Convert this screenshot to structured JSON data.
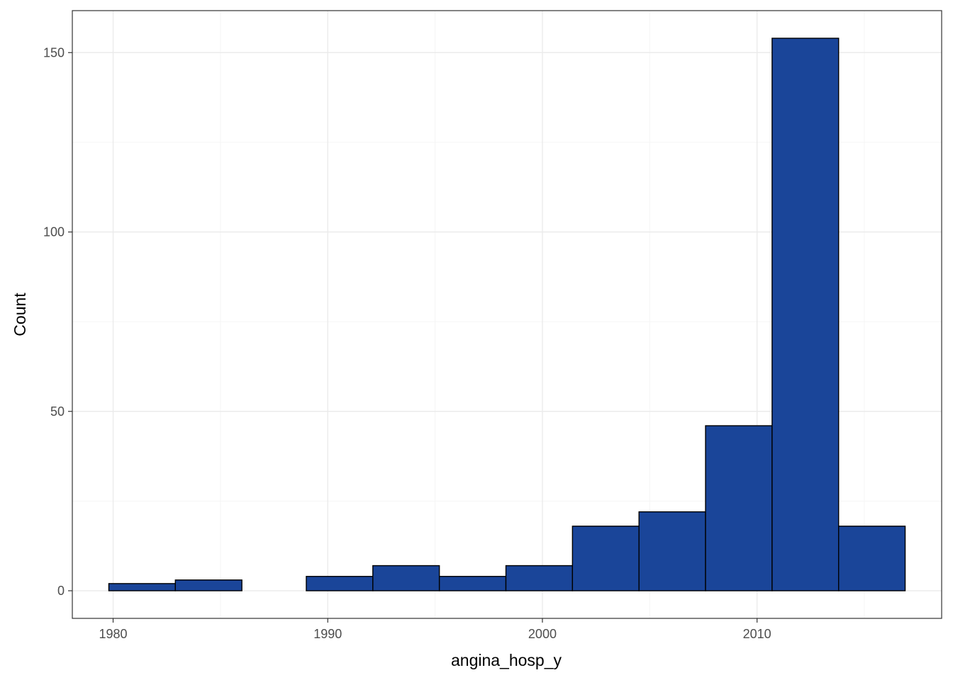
{
  "chart_data": {
    "type": "histogram",
    "title": "",
    "xlabel": "angina_hosp_y",
    "ylabel": "Count",
    "bins": [
      {
        "x0": 1979.8,
        "x1": 1982.9,
        "count": 2
      },
      {
        "x0": 1982.9,
        "x1": 1986.0,
        "count": 3
      },
      {
        "x0": 1986.0,
        "x1": 1989.0,
        "count": 0
      },
      {
        "x0": 1989.0,
        "x1": 1992.1,
        "count": 4
      },
      {
        "x0": 1992.1,
        "x1": 1995.2,
        "count": 7
      },
      {
        "x0": 1995.2,
        "x1": 1998.3,
        "count": 4
      },
      {
        "x0": 1998.3,
        "x1": 2001.4,
        "count": 7
      },
      {
        "x0": 2001.4,
        "x1": 2004.5,
        "count": 18
      },
      {
        "x0": 2004.5,
        "x1": 2007.6,
        "count": 22
      },
      {
        "x0": 2007.6,
        "x1": 2010.7,
        "count": 46
      },
      {
        "x0": 2010.7,
        "x1": 2013.8,
        "count": 154
      },
      {
        "x0": 2013.8,
        "x1": 2016.9,
        "count": 18
      }
    ],
    "xlim": [
      1978.1,
      2018.6
    ],
    "ylim": [
      -7.7,
      161.7
    ],
    "x_ticks": [
      1980,
      1990,
      2000,
      2010
    ],
    "x_tick_labels": [
      "1980",
      "1990",
      "2000",
      "2010"
    ],
    "y_ticks": [
      0,
      50,
      100,
      150
    ],
    "y_tick_labels": [
      "0",
      "50",
      "100",
      "150"
    ],
    "grid": true,
    "legend": "none",
    "colors": {
      "bar_fill": "#1a4599",
      "bar_stroke": "#000000",
      "panel_border": "#333333",
      "grid_major": "#ebebeb",
      "grid_minor": "#f5f5f5",
      "tick_text": "#4d4d4d"
    }
  }
}
